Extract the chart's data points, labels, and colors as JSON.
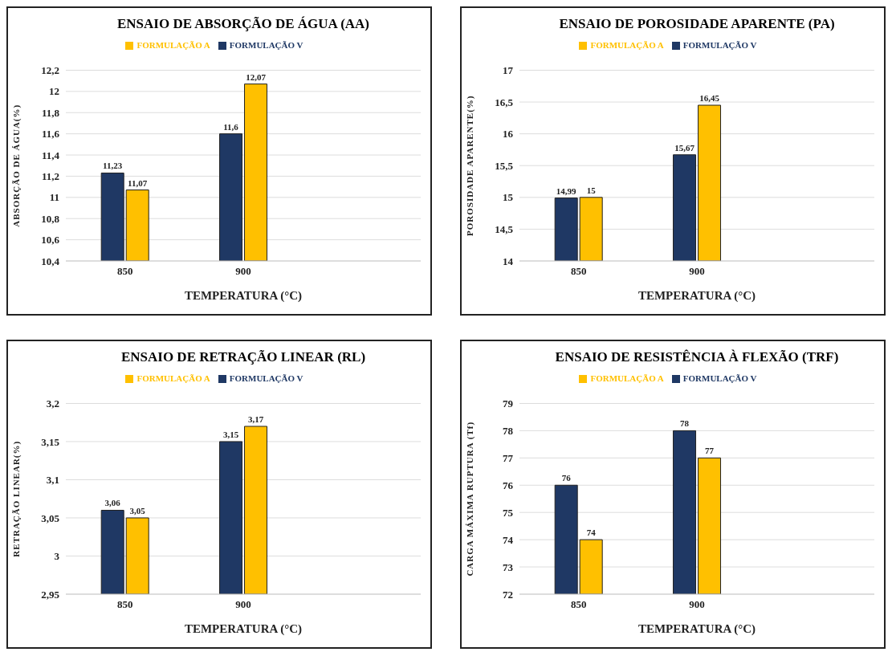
{
  "chart_data": [
    {
      "type": "bar",
      "title": "ENSAIO DE ABSORÇÃO DE ÁGUA (AA)",
      "xlabel": "TEMPERATURA (°C)",
      "ylabel": "ABSORÇÃO  DE ÁGUA(%)",
      "categories": [
        "850",
        "900",
        null
      ],
      "series": [
        {
          "name": "FORMULAÇÃO V",
          "color": "#1f3864",
          "values": [
            11.23,
            11.6,
            null
          ],
          "value_labels": [
            "11,23",
            "11,6",
            null
          ]
        },
        {
          "name": "FORMULAÇÃO A",
          "color": "#ffc000",
          "values": [
            11.07,
            12.07,
            null
          ],
          "value_labels": [
            "11,07",
            "12,07",
            null
          ]
        }
      ],
      "ylim": [
        10.4,
        12.2
      ],
      "yticks": [
        {
          "value": 10.4,
          "label": "10,4"
        },
        {
          "value": 10.6,
          "label": "10,6"
        },
        {
          "value": 10.8,
          "label": "10,8"
        },
        11,
        {
          "value": 11.2,
          "label": "11,2"
        },
        {
          "value": 11.4,
          "label": "11,4"
        },
        {
          "value": 11.6,
          "label": "11,6"
        },
        {
          "value": 11.8,
          "label": "11,8"
        },
        12,
        {
          "value": 12.2,
          "label": "12,2"
        }
      ],
      "grid": "y",
      "legend": "top"
    },
    {
      "type": "bar",
      "title": "ENSAIO DE POROSIDADE APARENTE (PA)",
      "xlabel": "TEMPERATURA (°C)",
      "ylabel": "POROSIDADE  APARENTE(%)",
      "categories": [
        "850",
        "900",
        null
      ],
      "series": [
        {
          "name": "FORMULAÇÃO V",
          "color": "#1f3864",
          "values": [
            14.99,
            15.67,
            null
          ],
          "value_labels": [
            "14,99",
            "15,67",
            null
          ]
        },
        {
          "name": "FORMULAÇÃO A",
          "color": "#ffc000",
          "values": [
            15,
            16.45,
            null
          ],
          "value_labels": [
            "15",
            "16,45",
            null
          ]
        }
      ],
      "ylim": [
        14,
        17
      ],
      "yticks": [
        14,
        {
          "value": 14.5,
          "label": "14,5"
        },
        15,
        {
          "value": 15.5,
          "label": "15,5"
        },
        16,
        {
          "value": 16.5,
          "label": "16,5"
        },
        17
      ],
      "grid": "y",
      "legend": "top"
    },
    {
      "type": "bar",
      "title": "ENSAIO DE RETRAÇÃO LINEAR (RL)",
      "xlabel": "TEMPERATURA (°C)",
      "ylabel": "RETRAÇÃO LINEAR(%)",
      "categories": [
        "850",
        "900",
        null
      ],
      "series": [
        {
          "name": "FORMULAÇÃO V",
          "color": "#1f3864",
          "values": [
            3.06,
            3.15,
            null
          ],
          "value_labels": [
            "3,06",
            "3,15",
            null
          ]
        },
        {
          "name": "FORMULAÇÃO A",
          "color": "#ffc000",
          "values": [
            3.05,
            3.17,
            null
          ],
          "value_labels": [
            "3,05",
            "3,17",
            null
          ]
        }
      ],
      "ylim": [
        2.95,
        3.2
      ],
      "yticks": [
        {
          "value": 2.95,
          "label": "2,95"
        },
        3,
        {
          "value": 3.05,
          "label": "3,05"
        },
        {
          "value": 3.1,
          "label": "3,1"
        },
        {
          "value": 3.15,
          "label": "3,15"
        },
        {
          "value": 3.2,
          "label": "3,2"
        }
      ],
      "grid": "y",
      "legend": "top"
    },
    {
      "type": "bar",
      "title": "ENSAIO DE RESISTÊNCIA À FLEXÃO (TRF)",
      "xlabel": "TEMPERATURA (°C)",
      "ylabel": "CARGA  MÁXIMA  RUPTURA  (Tf)",
      "categories": [
        "850",
        "900",
        null
      ],
      "series": [
        {
          "name": "FORMULAÇÃO V",
          "color": "#1f3864",
          "values": [
            76,
            78,
            null
          ],
          "value_labels": [
            "76",
            "78",
            null
          ]
        },
        {
          "name": "FORMULAÇÃO A",
          "color": "#ffc000",
          "values": [
            74,
            77,
            null
          ],
          "value_labels": [
            "74",
            "77",
            null
          ]
        }
      ],
      "ylim": [
        72,
        79
      ],
      "yticks": [
        72,
        73,
        74,
        75,
        76,
        77,
        78,
        79
      ],
      "grid": "y",
      "legend": "top"
    }
  ]
}
